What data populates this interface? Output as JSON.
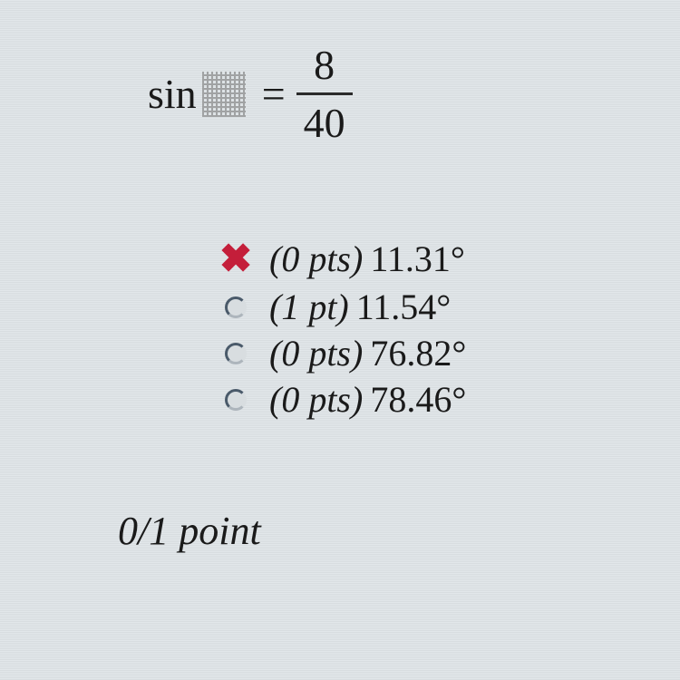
{
  "equation": {
    "function": "sin",
    "equals": "=",
    "numerator": "8",
    "denominator": "40"
  },
  "options": [
    {
      "marker_type": "wrong",
      "points": "(0 pts)",
      "answer": "11.31°"
    },
    {
      "marker_type": "radio",
      "points": "(1 pt)",
      "answer": "11.54°"
    },
    {
      "marker_type": "radio",
      "points": "(0 pts)",
      "answer": "76.82°"
    },
    {
      "marker_type": "radio",
      "points": "(0 pts)",
      "answer": "78.46°"
    }
  ],
  "score": "0/1 point",
  "colors": {
    "text": "#1a1a1a",
    "wrong_mark": "#c41e3a",
    "radio_border": "#4a5a6a",
    "background_light": "#e2e7ea",
    "background_dark": "#d8dde0"
  },
  "typography": {
    "equation_fontsize": 46,
    "option_fontsize": 40,
    "score_fontsize": 44,
    "font_family": "Georgia, serif"
  }
}
